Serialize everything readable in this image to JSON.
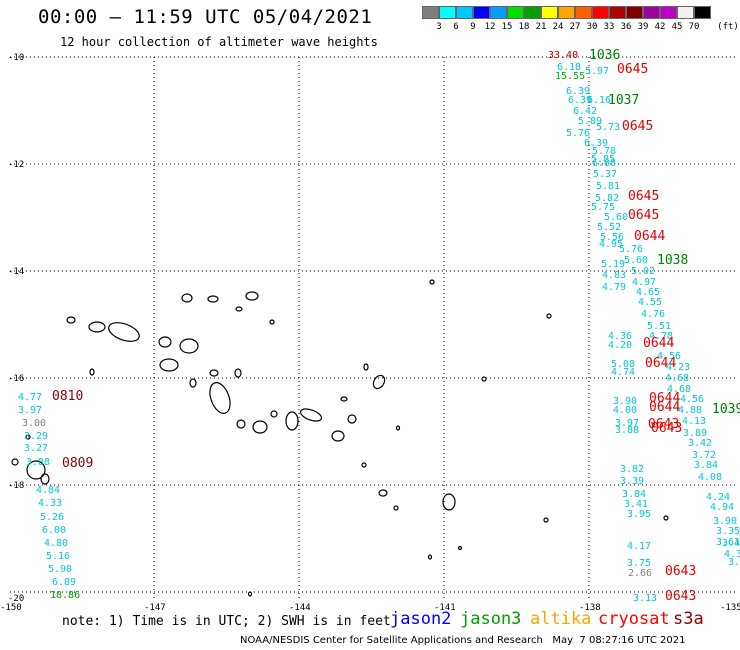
{
  "header": {
    "title": "00:00 – 11:59 UTC 05/04/2021",
    "subtitle": "12 hour collection of altimeter wave heights"
  },
  "legend": {
    "colors": [
      "#7f7f7f",
      "#00ffff",
      "#00c8ff",
      "#0000ff",
      "#00a0ff",
      "#00e000",
      "#00a000",
      "#ffff00",
      "#ffa500",
      "#ff6000",
      "#ff0000",
      "#b00000",
      "#800000",
      "#a000a0",
      "#c000c0",
      "#f0f0f0",
      "#000000"
    ],
    "labels": [
      "3",
      "6",
      "9",
      "12",
      "15",
      "18",
      "21",
      "24",
      "27",
      "30",
      "33",
      "36",
      "39",
      "42",
      "45",
      "70",
      "(ft)"
    ]
  },
  "axes": {
    "lon_labels": [
      "-150",
      "-147",
      "-144",
      "-141",
      "-138",
      "-135"
    ],
    "lat_labels": [
      "-10",
      "-12",
      "-14",
      "-16",
      "-18",
      "-20"
    ]
  },
  "markers": [
    {
      "text": "33.40",
      "color": "#b00000"
    },
    {
      "text": "1036",
      "color": "#008000"
    },
    {
      "text": "0645",
      "color": "#e00000"
    },
    {
      "text": "6.18",
      "color": "#00c8d8"
    },
    {
      "text": "5.97",
      "color": "#00c8d8"
    },
    {
      "text": "15.55",
      "color": "#00b000"
    },
    {
      "text": "6.39",
      "color": "#00c8d8"
    },
    {
      "text": "6.39",
      "color": "#00c8d8"
    },
    {
      "text": "6.16",
      "color": "#00c8d8"
    },
    {
      "text": "1037",
      "color": "#008000"
    },
    {
      "text": "6.42",
      "color": "#00c8d8"
    },
    {
      "text": "5.89",
      "color": "#00c8d8"
    },
    {
      "text": "5.73",
      "color": "#00c8d8"
    },
    {
      "text": "0645",
      "color": "#e00000"
    },
    {
      "text": "5.76",
      "color": "#00c8d8"
    },
    {
      "text": "6.39",
      "color": "#00c8d8"
    },
    {
      "text": "5.78",
      "color": "#00c8d8"
    },
    {
      "text": "5.85",
      "color": "#00c8d8"
    },
    {
      "text": "6.08",
      "color": "#00c8d8"
    },
    {
      "text": "5.37",
      "color": "#00c8d8"
    },
    {
      "text": "5.81",
      "color": "#00c8d8"
    },
    {
      "text": "5.82",
      "color": "#00c8d8"
    },
    {
      "text": "0645",
      "color": "#e00000"
    },
    {
      "text": "5.75",
      "color": "#00c8d8"
    },
    {
      "text": "5.60",
      "color": "#00c8d8"
    },
    {
      "text": "0645",
      "color": "#e00000"
    },
    {
      "text": "5.52",
      "color": "#00c8d8"
    },
    {
      "text": "5.56",
      "color": "#00c8d8"
    },
    {
      "text": "0644",
      "color": "#e00000"
    },
    {
      "text": "4.95",
      "color": "#00c8d8"
    },
    {
      "text": "5.76",
      "color": "#00c8d8"
    },
    {
      "text": "5.60",
      "color": "#00c8d8"
    },
    {
      "text": "1038",
      "color": "#008000"
    },
    {
      "text": "5.19",
      "color": "#00c8d8"
    },
    {
      "text": "5.02",
      "color": "#00c8d8"
    },
    {
      "text": "4.83",
      "color": "#00c8d8"
    },
    {
      "text": "4.97",
      "color": "#00c8d8"
    },
    {
      "text": "4.79",
      "color": "#00c8d8"
    },
    {
      "text": "4.65",
      "color": "#00c8d8"
    },
    {
      "text": "4.55",
      "color": "#00c8d8"
    },
    {
      "text": "4.76",
      "color": "#00c8d8"
    },
    {
      "text": "5.51",
      "color": "#00c8d8"
    },
    {
      "text": "4.36",
      "color": "#00c8d8"
    },
    {
      "text": "4.78",
      "color": "#00c8d8"
    },
    {
      "text": "4.20",
      "color": "#00c8d8"
    },
    {
      "text": "0644",
      "color": "#e00000"
    },
    {
      "text": "4.56",
      "color": "#00c8d8"
    },
    {
      "text": "5.08",
      "color": "#00c8d8"
    },
    {
      "text": "0644",
      "color": "#e00000"
    },
    {
      "text": "4.74",
      "color": "#00c8d8"
    },
    {
      "text": "4.23",
      "color": "#00c8d8"
    },
    {
      "text": "4.68",
      "color": "#00c8d8"
    },
    {
      "text": "4.68",
      "color": "#00c8d8"
    },
    {
      "text": "3.90",
      "color": "#00c8d8"
    },
    {
      "text": "0644",
      "color": "#e00000"
    },
    {
      "text": "4.56",
      "color": "#00c8d8"
    },
    {
      "text": "4.00",
      "color": "#00c8d8"
    },
    {
      "text": "0644",
      "color": "#e00000"
    },
    {
      "text": "4.88",
      "color": "#00c8d8"
    },
    {
      "text": "1039",
      "color": "#008000"
    },
    {
      "text": "3.97",
      "color": "#00c8d8"
    },
    {
      "text": "0643",
      "color": "#e00000"
    },
    {
      "text": "4.13",
      "color": "#00c8d8"
    },
    {
      "text": "3.88",
      "color": "#00c8d8"
    },
    {
      "text": "0643",
      "color": "#e00000"
    },
    {
      "text": "3.89",
      "color": "#00c8d8"
    },
    {
      "text": "3.42",
      "color": "#00c8d8"
    },
    {
      "text": "3.72",
      "color": "#00c8d8"
    },
    {
      "text": "3.84",
      "color": "#00c8d8"
    },
    {
      "text": "3.82",
      "color": "#00c8d8"
    },
    {
      "text": "4.08",
      "color": "#00c8d8"
    },
    {
      "text": "3.39",
      "color": "#00c8d8"
    },
    {
      "text": "4.24",
      "color": "#00c8d8"
    },
    {
      "text": "3.84",
      "color": "#00c8d8"
    },
    {
      "text": "4.94",
      "color": "#00c8d8"
    },
    {
      "text": "3.41",
      "color": "#00c8d8"
    },
    {
      "text": "3.90",
      "color": "#00c8d8"
    },
    {
      "text": "3.95",
      "color": "#00c8d8"
    },
    {
      "text": "3.35",
      "color": "#00c8d8"
    },
    {
      "text": "3.61",
      "color": "#00c8d8"
    },
    {
      "text": "4.17",
      "color": "#00c8d8"
    },
    {
      "text": "3.49",
      "color": "#00c8d8"
    },
    {
      "text": "4.3",
      "color": "#00c8d8"
    },
    {
      "text": "3.75",
      "color": "#00c8d8"
    },
    {
      "text": "2.66",
      "color": "#808080"
    },
    {
      "text": "0643",
      "color": "#e00000"
    },
    {
      "text": "3.6",
      "color": "#00c8d8"
    },
    {
      "text": "3.13",
      "color": "#00c8d8"
    },
    {
      "text": "0643",
      "color": "#e00000"
    },
    {
      "text": "4.77",
      "color": "#00c8d8"
    },
    {
      "text": "0810",
      "color": "#8b0000"
    },
    {
      "text": "3.97",
      "color": "#00c8d8"
    },
    {
      "text": "3.00",
      "color": "#808080"
    },
    {
      "text": "3.29",
      "color": "#00c8d8"
    },
    {
      "text": "3.27",
      "color": "#00c8d8"
    },
    {
      "text": "3.88",
      "color": "#00c8d8"
    },
    {
      "text": "0809",
      "color": "#8b0000"
    },
    {
      "text": "4.84",
      "color": "#00c8d8"
    },
    {
      "text": "4.33",
      "color": "#00c8d8"
    },
    {
      "text": "5.26",
      "color": "#00c8d8"
    },
    {
      "text": "6.00",
      "color": "#00c8d8"
    },
    {
      "text": "4.80",
      "color": "#00c8d8"
    },
    {
      "text": "5.16",
      "color": "#00c8d8"
    },
    {
      "text": "5.90",
      "color": "#00c8d8"
    },
    {
      "text": "6.89",
      "color": "#00c8d8"
    },
    {
      "text": "18.86",
      "color": "#00a000"
    }
  ],
  "footer": {
    "note": "note: 1) Time is in UTC; 2) SWH is in feet",
    "satellites": [
      {
        "name": "jason2",
        "color": "#0000ff"
      },
      {
        "name": "jason3",
        "color": "#00a000"
      },
      {
        "name": "altika",
        "color": "#ffa500"
      },
      {
        "name": "cryosat",
        "color": "#ff0000"
      },
      {
        "name": "s3a",
        "color": "#8b0000"
      }
    ],
    "credit": "NOAA/NESDIS Center for Satellite Applications and Research   May  7 08:27:16 UTC 2021"
  }
}
